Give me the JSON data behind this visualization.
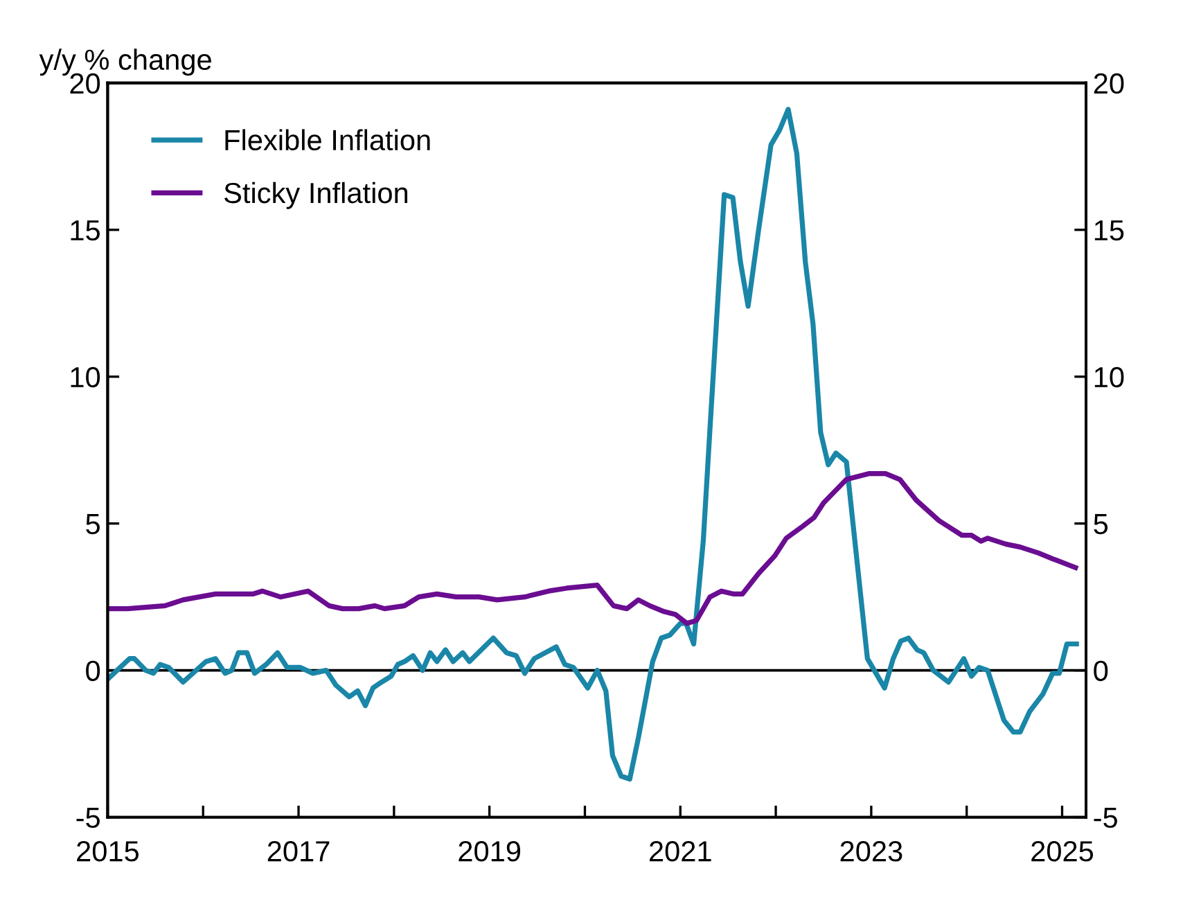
{
  "chart_data": {
    "type": "line",
    "ylabel": "y/y % change",
    "xlim": [
      2015,
      2025.25
    ],
    "xticks": [
      2015,
      {
        "value": 2016,
        "label": null
      },
      2017,
      {
        "value": 2018,
        "label": null
      },
      2019,
      {
        "value": 2020,
        "label": null
      },
      2021,
      {
        "value": 2022,
        "label": null
      },
      2023,
      {
        "value": 2024,
        "label": null
      },
      2025
    ],
    "ylim": [
      -5,
      20
    ],
    "yticks": [
      -5,
      0,
      5,
      10,
      15,
      20
    ],
    "y2lim": [
      -5,
      20
    ],
    "y2ticks": [
      -5,
      0,
      5,
      10,
      15,
      20
    ],
    "grid": false,
    "legend": "top left",
    "marker": "none",
    "line_style": "solid",
    "ref_lines": [
      {
        "axis": "y",
        "value": 0,
        "color": "#000000"
      }
    ],
    "series": [
      {
        "name": "Flexible Inflation",
        "color": "#1a86a8",
        "x": [
          2015.0,
          2015.23,
          2015.28,
          2015.4,
          2015.48,
          2015.55,
          2015.64,
          2015.79,
          2016.03,
          2016.13,
          2016.23,
          2016.3,
          2016.37,
          2016.46,
          2016.54,
          2016.66,
          2016.78,
          2016.88,
          2017.02,
          2017.15,
          2017.29,
          2017.39,
          2017.53,
          2017.62,
          2017.7,
          2017.78,
          2017.87,
          2017.97,
          2018.04,
          2018.11,
          2018.2,
          2018.3,
          2018.38,
          2018.45,
          2018.54,
          2018.62,
          2018.72,
          2018.79,
          2019.04,
          2019.18,
          2019.28,
          2019.37,
          2019.47,
          2019.7,
          2019.79,
          2019.88,
          2020.03,
          2020.13,
          2020.22,
          2020.29,
          2020.38,
          2020.47,
          2020.56,
          2020.71,
          2020.8,
          2020.89,
          2021.0,
          2021.06,
          2021.14,
          2021.24,
          2021.31,
          2021.46,
          2021.55,
          2021.63,
          2021.71,
          2021.82,
          2021.95,
          2022.04,
          2022.13,
          2022.22,
          2022.31,
          2022.39,
          2022.47,
          2022.55,
          2022.63,
          2022.74,
          2022.96,
          2023.14,
          2023.23,
          2023.31,
          2023.39,
          2023.48,
          2023.55,
          2023.65,
          2023.81,
          2023.97,
          2024.05,
          2024.13,
          2024.22,
          2024.39,
          2024.49,
          2024.56,
          2024.66,
          2024.8,
          2024.9,
          2024.97,
          2025.05,
          2025.15
        ],
        "values": [
          -0.3,
          0.4,
          0.4,
          0.0,
          -0.1,
          0.2,
          0.1,
          -0.4,
          0.3,
          0.4,
          -0.1,
          0.0,
          0.6,
          0.6,
          -0.1,
          0.2,
          0.6,
          0.1,
          0.1,
          -0.1,
          0.0,
          -0.5,
          -0.9,
          -0.7,
          -1.2,
          -0.6,
          -0.4,
          -0.2,
          0.2,
          0.3,
          0.5,
          0.0,
          0.6,
          0.3,
          0.7,
          0.3,
          0.6,
          0.3,
          1.1,
          0.6,
          0.5,
          -0.1,
          0.4,
          0.8,
          0.2,
          0.1,
          -0.6,
          0.0,
          -0.7,
          -2.9,
          -3.6,
          -3.7,
          -2.3,
          0.3,
          1.1,
          1.2,
          1.6,
          1.6,
          0.9,
          4.4,
          8.2,
          16.2,
          16.1,
          13.9,
          12.4,
          15.0,
          17.9,
          18.4,
          19.1,
          17.6,
          13.9,
          11.8,
          8.1,
          7.0,
          7.4,
          7.1,
          0.4,
          -0.6,
          0.4,
          1.0,
          1.1,
          0.7,
          0.6,
          0.0,
          -0.4,
          0.4,
          -0.2,
          0.1,
          0.0,
          -1.7,
          -2.1,
          -2.1,
          -1.4,
          -0.8,
          -0.1,
          -0.1,
          0.9,
          0.9
        ]
      },
      {
        "name": "Sticky Inflation",
        "color": "#6a0d91",
        "x": [
          2015.0,
          2015.21,
          2015.6,
          2015.79,
          2016.13,
          2016.52,
          2016.62,
          2016.81,
          2017.1,
          2017.32,
          2017.46,
          2017.63,
          2017.8,
          2017.9,
          2018.11,
          2018.26,
          2018.45,
          2018.65,
          2018.89,
          2019.08,
          2019.37,
          2019.62,
          2019.81,
          2020.13,
          2020.3,
          2020.44,
          2020.56,
          2020.68,
          2020.83,
          2020.95,
          2021.07,
          2021.17,
          2021.31,
          2021.43,
          2021.56,
          2021.65,
          2021.82,
          2021.99,
          2022.11,
          2022.28,
          2022.4,
          2022.5,
          2022.74,
          2022.98,
          2023.15,
          2023.3,
          2023.47,
          2023.71,
          2023.95,
          2024.05,
          2024.15,
          2024.22,
          2024.41,
          2024.56,
          2024.75,
          2024.9,
          2025.14
        ],
        "values": [
          2.1,
          2.1,
          2.2,
          2.4,
          2.6,
          2.6,
          2.7,
          2.5,
          2.7,
          2.2,
          2.1,
          2.1,
          2.2,
          2.1,
          2.2,
          2.5,
          2.6,
          2.5,
          2.5,
          2.4,
          2.5,
          2.7,
          2.8,
          2.9,
          2.2,
          2.1,
          2.4,
          2.2,
          2.0,
          1.9,
          1.6,
          1.7,
          2.5,
          2.7,
          2.6,
          2.6,
          3.3,
          3.9,
          4.5,
          4.9,
          5.2,
          5.7,
          6.5,
          6.7,
          6.7,
          6.5,
          5.8,
          5.1,
          4.6,
          4.6,
          4.4,
          4.5,
          4.3,
          4.2,
          4.0,
          3.8,
          3.5
        ]
      }
    ]
  }
}
